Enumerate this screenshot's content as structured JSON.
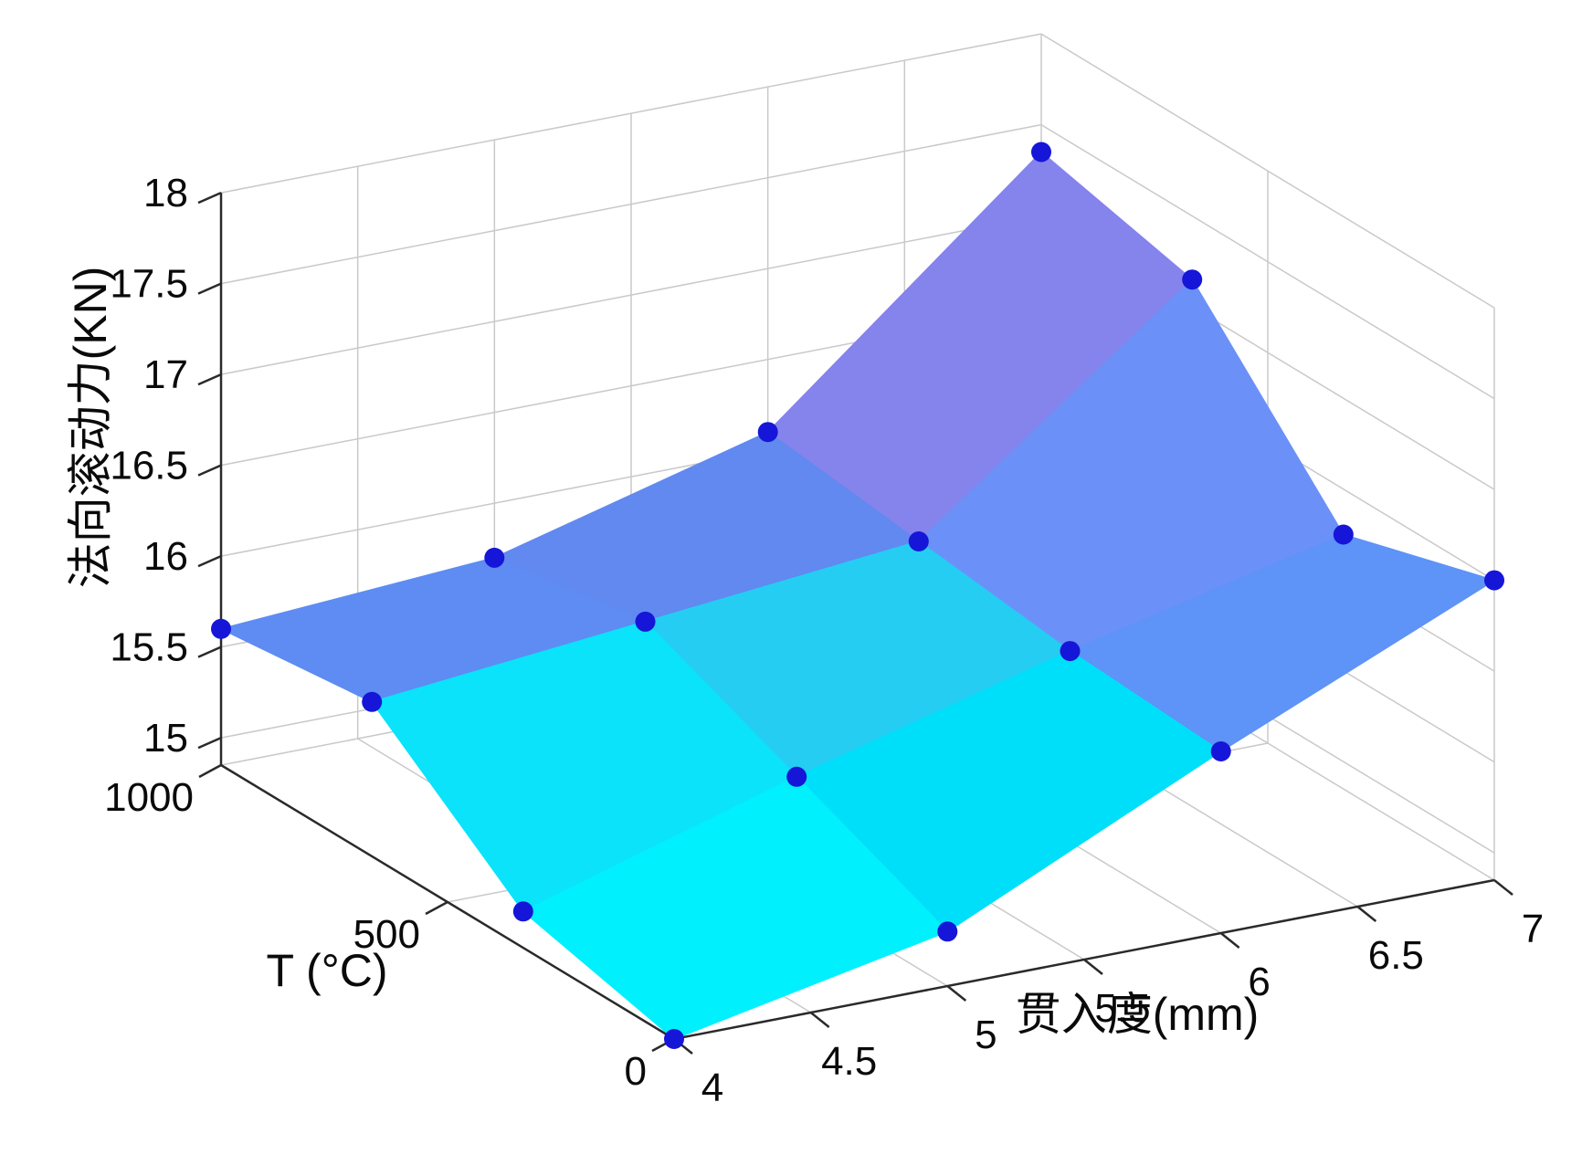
{
  "chart_data": {
    "type": "surface",
    "title": "",
    "xlabel": "贯入度(mm)",
    "ylabel": "T (°C)",
    "zlabel": "法向滚动力(KN)",
    "x_values": [
      4,
      5,
      6,
      7
    ],
    "t_values": [
      0,
      333,
      667,
      1000
    ],
    "z_grid_kn": [
      [
        14.85,
        15.15,
        15.85,
        16.5
      ],
      [
        15.05,
        15.5,
        15.9,
        16.25
      ],
      [
        15.7,
        15.85,
        16.0,
        17.15
      ],
      [
        15.6,
        15.7,
        16.1,
        17.35
      ]
    ],
    "x_ticks": {
      "values": [
        4,
        4.5,
        5,
        5.5,
        6,
        6.5,
        7
      ],
      "labels": [
        "4",
        "4.5",
        "5",
        "5.5",
        "6",
        "6.5",
        "7"
      ]
    },
    "t_ticks": {
      "values": [
        0,
        500,
        1000
      ],
      "labels": [
        "0",
        "500",
        "1000"
      ]
    },
    "z_ticks": {
      "values": [
        15,
        15.5,
        16,
        16.5,
        17,
        17.5,
        18
      ],
      "labels": [
        "15",
        "15.5",
        "16",
        "16.5",
        "17",
        "17.5",
        "18"
      ]
    },
    "xlim": [
      4,
      7
    ],
    "tlim": [
      0,
      1000
    ],
    "zlim": [
      14.85,
      18
    ],
    "grid": true,
    "legend_position": "none",
    "marker": {
      "shape": "circle",
      "color": "#1616D8",
      "radius": 11
    },
    "facet_colors": [
      [
        "#00F0FE",
        "#00DFFA",
        "#5E93F7"
      ],
      [
        "#0BE3FB",
        "#25CDF3",
        "#6B91F8"
      ],
      [
        "#5E8CF3",
        "#6189F0",
        "#8583EC"
      ]
    ],
    "colors": {
      "axis": "#2a2a2a",
      "grid": "#c9c9c9",
      "background": "#ffffff",
      "marker": "#1616D8",
      "colormap_low": "#00FFFF",
      "colormap_high": "#8583EC"
    }
  }
}
